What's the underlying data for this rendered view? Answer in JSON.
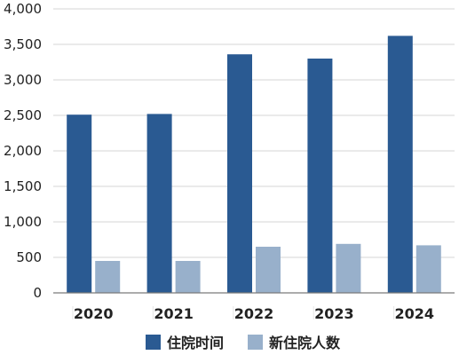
{
  "chart_data": {
    "type": "bar",
    "title": "",
    "xlabel": "",
    "ylabel": "",
    "categories": [
      "2020",
      "2021",
      "2022",
      "2023",
      "2024"
    ],
    "series": [
      {
        "name": "住院时间",
        "color": "#2a5a92",
        "values": [
          2510,
          2520,
          3360,
          3300,
          3620
        ]
      },
      {
        "name": "新住院人数",
        "color": "#98b0cb",
        "values": [
          450,
          450,
          650,
          690,
          670
        ]
      }
    ],
    "ylim": [
      0,
      4000
    ],
    "yticks": [
      "0",
      "500",
      "1,000",
      "1,500",
      "2,000",
      "2,500",
      "3,000",
      "3,500",
      "4,000"
    ],
    "grid": true,
    "legend_position": "bottom"
  }
}
